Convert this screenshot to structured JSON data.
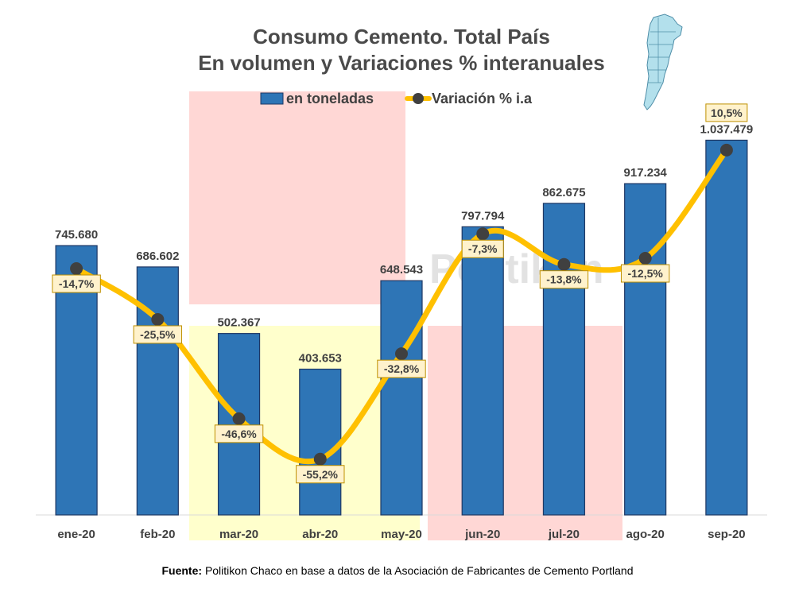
{
  "title": {
    "line1": "Consumo Cemento. Total País",
    "line2": "En volumen y Variaciones % interanuales"
  },
  "legend": {
    "bars": "en toneladas",
    "line": "Variación % i.a"
  },
  "watermark": "Politikon",
  "source": {
    "label": "Fuente:",
    "text": "Politikon Chaco en base a datos de la Asociación de Fabricantes de Cemento Portland"
  },
  "colors": {
    "bar": "#2e75b6",
    "line": "#ffc000",
    "marker": "#404040",
    "label_box_fill": "#fff2cc",
    "label_box_stroke": "#bf9000",
    "shade_red": "#ffd7d5",
    "shade_yellow": "#ffffcc"
  },
  "chart_data": {
    "type": "bar",
    "categories": [
      "ene-20",
      "feb-20",
      "mar-20",
      "abr-20",
      "may-20",
      "jun-20",
      "jul-20",
      "ago-20",
      "sep-20"
    ],
    "series": [
      {
        "name": "en toneladas",
        "type": "bar",
        "values": [
          745680,
          686602,
          502367,
          403653,
          648543,
          797794,
          862675,
          917234,
          1037479
        ],
        "labels": [
          "745.680",
          "686.602",
          "502.367",
          "403.653",
          "648.543",
          "797.794",
          "862.675",
          "917.234",
          "1.037.479"
        ]
      },
      {
        "name": "Variación % i.a",
        "type": "line",
        "values": [
          -14.7,
          -25.5,
          -46.6,
          -55.2,
          -32.8,
          -7.3,
          -13.8,
          -12.5,
          10.5
        ],
        "labels": [
          "-14,7%",
          "-25,5%",
          "-46,6%",
          "-55,2%",
          "-32,8%",
          "-7,3%",
          "-13,8%",
          "-12,5%",
          "10,5%"
        ]
      }
    ],
    "ylim": [
      0,
      1100000
    ],
    "y2lim": [
      -62,
      12
    ],
    "grid": false,
    "legend_position": "top"
  }
}
